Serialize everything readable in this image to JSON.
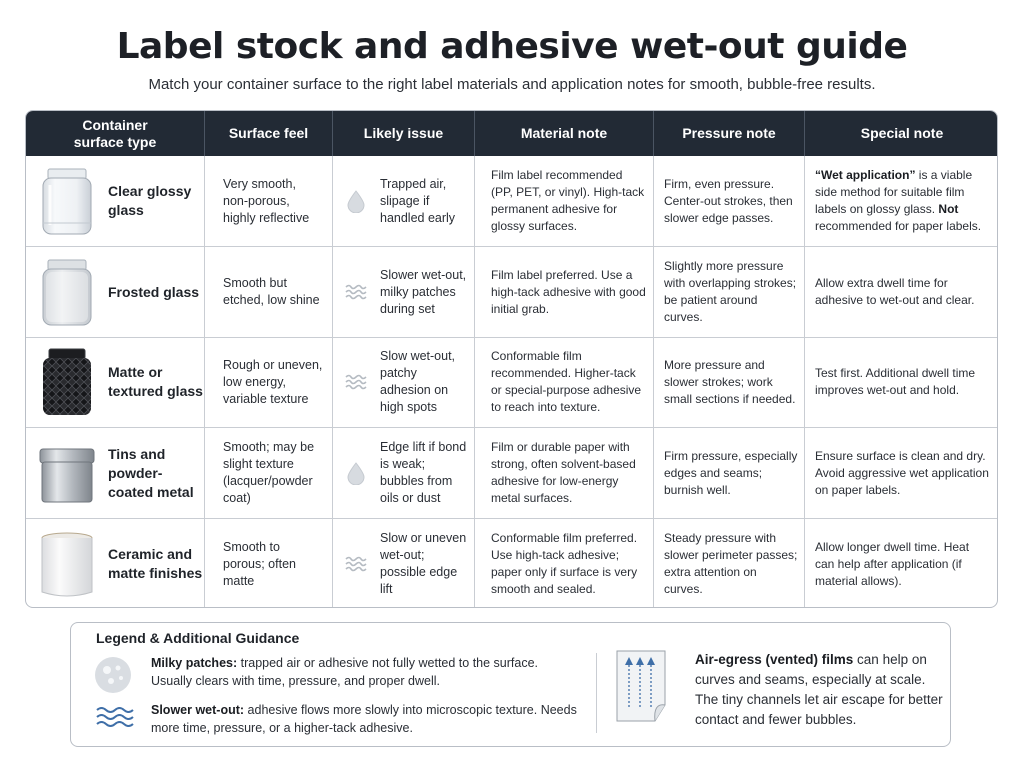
{
  "title": "Label stock and adhesive wet-out guide",
  "subtitle": "Match your container surface to the right label materials and application notes for smooth, bubble-free results.",
  "headers": {
    "type": "Container surface type",
    "feel": "Surface feel",
    "issue": "Likely issue",
    "material": "Material note",
    "pressure": "Pressure note",
    "special": "Special note"
  },
  "colors": {
    "header_bg": "#222a35",
    "border": "#c9cdd3",
    "accent_blue": "#3f6fa8"
  },
  "rows": [
    {
      "type": "Clear glossy glass",
      "image_icon": "clear-glass-jar",
      "feel": "Very smooth, non-porous, highly reflective",
      "issue_icon": "droplet-icon",
      "issue": "Trapped air, slipage if handled early",
      "material": "Film label recommended (PP, PET, or vinyl). High-tack permanent adhesive for glossy surfaces.",
      "pressure": "Firm, even pressure. Center-out strokes, then slower edge passes.",
      "special_a": "“Wet application”",
      "special_b": " is a viable side method for suitable film labels on glossy glass. ",
      "special_c": "Not",
      "special_d": " recommended for paper labels."
    },
    {
      "type": "Frosted glass",
      "image_icon": "frosted-glass-jar",
      "feel": "Smooth but etched, low shine",
      "issue_icon": "waves-icon",
      "issue": "Slower wet-out, milky patches during set",
      "material": "Film label preferred. Use a high-tack adhesive with good initial grab.",
      "pressure": "Slightly more pressure with overlapping strokes; be patient around curves.",
      "special": "Allow extra dwell time for adhesive to wet-out and clear."
    },
    {
      "type": "Matte or textured glass",
      "image_icon": "black-textured-jar",
      "feel": "Rough or uneven, low energy, variable texture",
      "issue_icon": "waves-icon",
      "issue": "Slow wet-out, patchy adhesion on high spots",
      "material": "Conformable film recommended. Higher-tack or special-purpose adhesive to reach into texture.",
      "pressure": "More pressure and slower strokes; work small sections if needed.",
      "special": "Test first. Additional dwell time improves wet-out and hold."
    },
    {
      "type": "Tins and powder-coated metal",
      "image_icon": "metal-tin",
      "feel": "Smooth; may be slight texture (lacquer/powder coat)",
      "issue_icon": "droplet-icon",
      "issue": "Edge lift if bond is weak; bubbles from oils or dust",
      "material": "Film or durable paper with strong, often solvent-based adhesive for low-energy metal surfaces.",
      "pressure": "Firm pressure, especially edges and seams; burnish well.",
      "special": "Ensure surface is clean and dry. Avoid aggressive wet application on paper labels."
    },
    {
      "type": "Ceramic and matte finishes",
      "image_icon": "ceramic-jar",
      "feel": "Smooth to porous; often matte",
      "issue_icon": "waves-icon",
      "issue": "Slow or uneven wet-out; possible edge lift",
      "material": "Conformable film preferred. Use high-tack adhesive; paper only if surface is very smooth and sealed.",
      "pressure": "Steady pressure with slower perimeter passes; extra attention on curves.",
      "special": "Allow longer dwell time. Heat can help after application (if material allows)."
    }
  ],
  "legend": {
    "title": "Legend & Additional Guidance",
    "milky_label": "Milky patches:",
    "milky_text": " trapped air or adhesive not fully wetted to the surface. Usually clears with time, pressure, and proper dwell.",
    "slow_label": "Slower wet-out:",
    "slow_text": " adhesive flows more slowly into microscopic texture. Needs more time, pressure, or a higher-tack adhesive.",
    "air_label": "Air-egress (vented) films",
    "air_text": " can help on curves and seams, especially at scale. The tiny channels let air escape for better contact and fewer bubbles."
  }
}
